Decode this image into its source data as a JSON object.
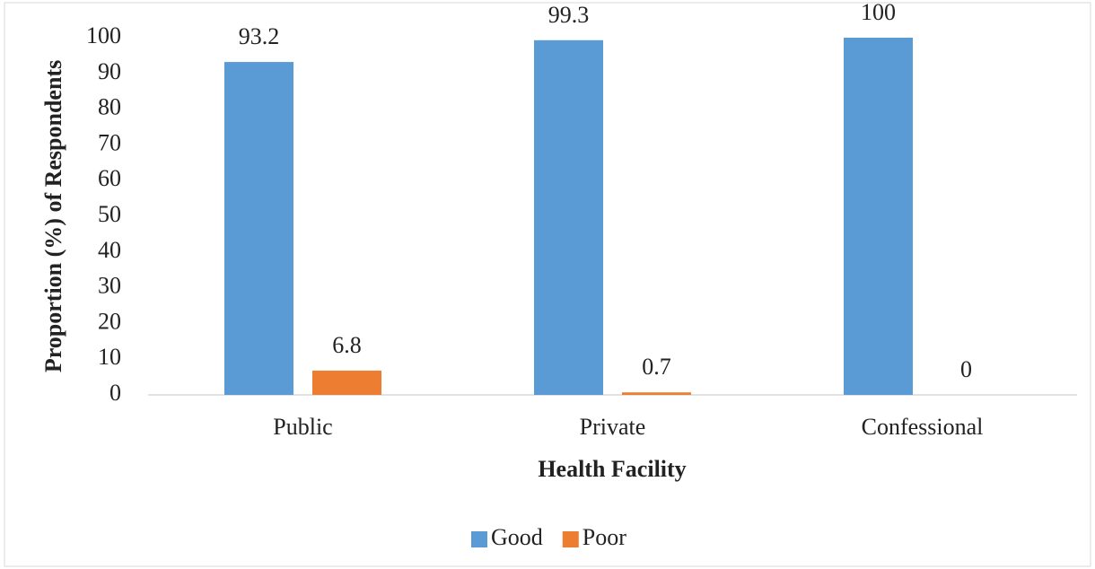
{
  "chart_data": {
    "type": "bar",
    "x_label": "Health Facility",
    "y_label": "Proportion (%) of Respondents",
    "categories": [
      "Public",
      "Private",
      "Confessional"
    ],
    "series": [
      {
        "name": "Good",
        "color": "#5b9bd5",
        "values": [
          93.2,
          99.3,
          100
        ]
      },
      {
        "name": "Poor",
        "color": "#ed7d31",
        "values": [
          6.8,
          0.7,
          0
        ]
      }
    ],
    "ylim": [
      0,
      100
    ],
    "yticks": [
      0,
      10,
      20,
      30,
      40,
      50,
      60,
      70,
      80,
      90,
      100
    ],
    "grid": false,
    "legend": "bottom"
  }
}
